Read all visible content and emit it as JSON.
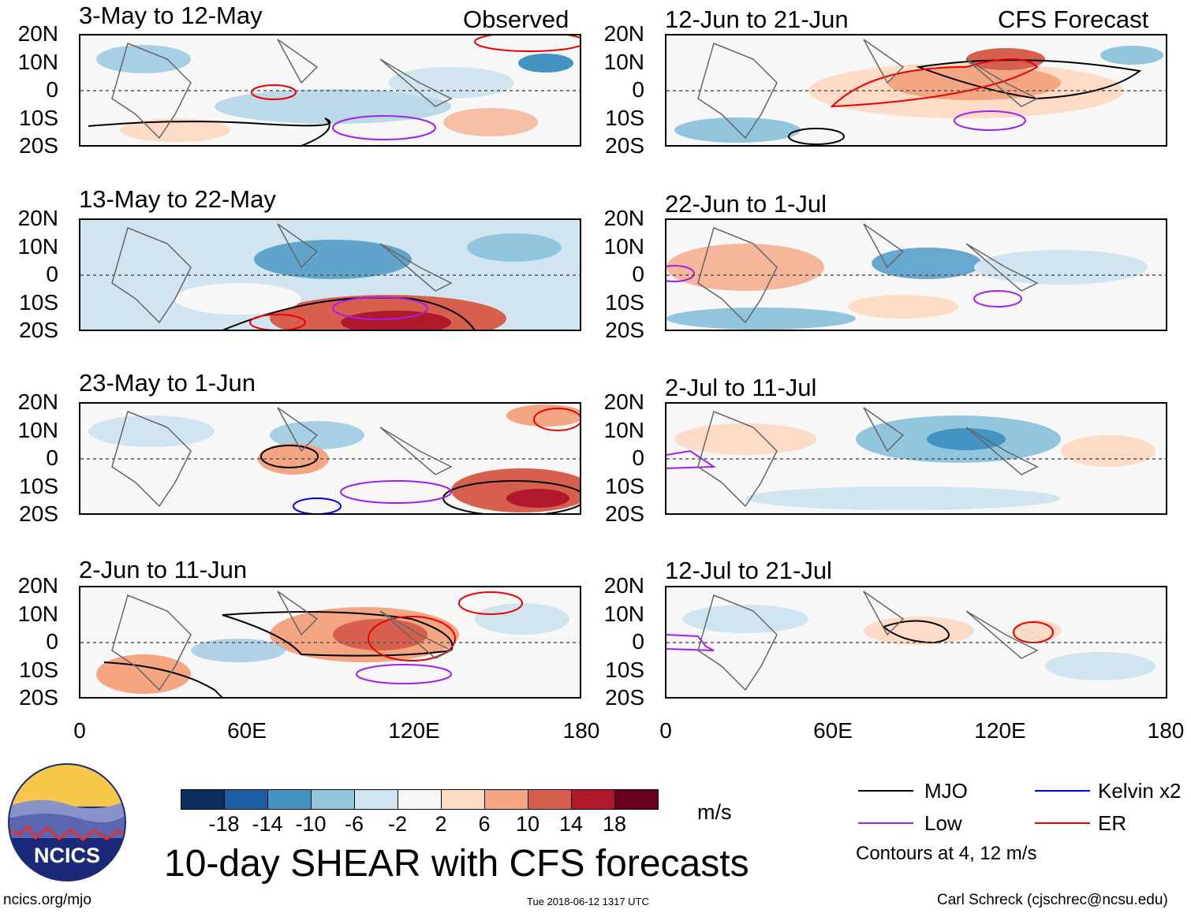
{
  "headers": {
    "left": "Observed",
    "right": "CFS Forecast"
  },
  "panels_left": [
    {
      "title": "3-May to 12-May"
    },
    {
      "title": "13-May to 22-May"
    },
    {
      "title": "23-May to 1-Jun"
    },
    {
      "title": "2-Jun to 11-Jun"
    }
  ],
  "panels_right": [
    {
      "title": "12-Jun to 21-Jun"
    },
    {
      "title": "22-Jun to 1-Jul"
    },
    {
      "title": "2-Jul to 11-Jul"
    },
    {
      "title": "12-Jul to 21-Jul"
    }
  ],
  "lat_labels": [
    "20N",
    "10N",
    "0",
    "10S",
    "20S"
  ],
  "lon_labels": [
    "0",
    "60E",
    "120E",
    "180"
  ],
  "colorbar": {
    "colors": [
      "#0b2e5e",
      "#1f5fa8",
      "#4393c3",
      "#92c5de",
      "#d1e5f0",
      "#f7f7f7",
      "#fddbc7",
      "#f4a582",
      "#d6604d",
      "#b2182b",
      "#67001f"
    ],
    "labels": [
      "-18",
      "-14",
      "-10",
      "-6",
      "-2",
      "2",
      "6",
      "10",
      "14",
      "18"
    ],
    "unit": "m/s"
  },
  "legend": {
    "items": [
      {
        "label": "MJO",
        "color": "#000000"
      },
      {
        "label": "Kelvin x2",
        "color": "#0000ee"
      },
      {
        "label": "Low",
        "color": "#a020f0"
      },
      {
        "label": "ER",
        "color": "#ee0000"
      }
    ],
    "note": "Contours at 4, 12 m/s"
  },
  "title": "10-day SHEAR with CFS forecasts",
  "logo_text": "NCICS",
  "footer": {
    "left": "ncics.org/mjo",
    "center": "Tue 2018-06-12 1317 UTC",
    "right": "Carl Schreck (cjschrec@ncsu.edu)"
  }
}
